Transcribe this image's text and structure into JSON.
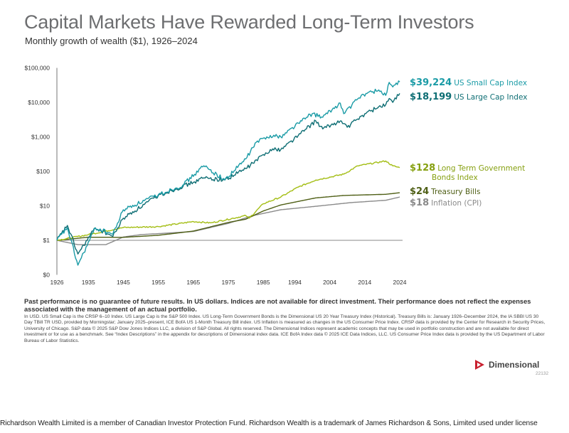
{
  "title": "Capital Markets Have Rewarded Long-Term Investors",
  "subtitle": "Monthly growth of wealth ($1), 1926–2024",
  "chart_data": {
    "type": "line",
    "title": "Capital Markets Have Rewarded Long-Term Investors",
    "subtitle": "Monthly growth of wealth ($1), 1926–2024",
    "y_scale": "log",
    "ylim": [
      0.1,
      100000
    ],
    "xlim": [
      1926,
      2024
    ],
    "y_ticks": [
      {
        "value": 100000,
        "label": "$100,000"
      },
      {
        "value": 10000,
        "label": "$10,000"
      },
      {
        "value": 1000,
        "label": "$1,000"
      },
      {
        "value": 100,
        "label": "$100"
      },
      {
        "value": 10,
        "label": "$10"
      },
      {
        "value": 1,
        "label": "$1"
      },
      {
        "value": 0.1,
        "label": "$0"
      }
    ],
    "x_ticks": [
      "1926",
      "1935",
      "1945",
      "1955",
      "1965",
      "1975",
      "1985",
      "1994",
      "2004",
      "2014",
      "2024"
    ],
    "grid": false,
    "legend": "right (end labels)",
    "series": [
      {
        "name": "US Small Cap Index",
        "end_label": "$39,224",
        "color": "#1a9ba6",
        "x": [
          1926,
          1929,
          1932,
          1937,
          1942,
          1945,
          1955,
          1962,
          1968,
          1974,
          1980,
          1983,
          1987,
          1990,
          1995,
          1999,
          2002,
          2007,
          2008,
          2013,
          2018,
          2020,
          2021,
          2022,
          2024
        ],
        "y": [
          1,
          2.3,
          0.19,
          2.3,
          1.5,
          7.7,
          21,
          40,
          145,
          56,
          230,
          700,
          1100,
          1000,
          2500,
          4700,
          3700,
          9500,
          4700,
          16000,
          23000,
          16000,
          38000,
          28000,
          39224
        ]
      },
      {
        "name": "US Large Cap Index",
        "end_label": "$18,199",
        "color": "#0e6e74",
        "x": [
          1926,
          1929,
          1932,
          1937,
          1942,
          1945,
          1955,
          1965,
          1968,
          1974,
          1980,
          1987,
          1990,
          1995,
          2000,
          2002,
          2007,
          2009,
          2013,
          2018,
          2020,
          2021,
          2022,
          2024
        ],
        "y": [
          1,
          2.7,
          0.4,
          2.3,
          1.3,
          4.4,
          20,
          48,
          65,
          56,
          120,
          430,
          430,
          1100,
          2900,
          1700,
          2900,
          1900,
          4000,
          7500,
          8500,
          13000,
          10000,
          18199
        ]
      },
      {
        "name": "Long Term Government Bonds Index",
        "end_label": "$128",
        "color": "#a3bd12",
        "x": [
          1926,
          1935,
          1945,
          1955,
          1965,
          1970,
          1980,
          1981,
          1985,
          1990,
          1995,
          2000,
          2008,
          2012,
          2020,
          2022,
          2024
        ],
        "y": [
          1,
          1.46,
          2.35,
          2.5,
          3.5,
          3.2,
          5.2,
          4.4,
          11.5,
          18,
          35,
          56,
          83,
          144,
          200,
          144,
          128
        ]
      },
      {
        "name": "Treasury Bills",
        "end_label": "$24",
        "color": "#4f5f16",
        "x": [
          1926,
          1935,
          1945,
          1955,
          1965,
          1975,
          1980,
          1985,
          1990,
          2000,
          2008,
          2020,
          2024
        ],
        "y": [
          1,
          1.23,
          1.22,
          1.4,
          1.85,
          3.3,
          4.1,
          7.1,
          10.6,
          17,
          20,
          21.6,
          24
        ]
      },
      {
        "name": "Inflation (CPI)",
        "end_label": "$18",
        "color": "#8a8a8a",
        "x": [
          1926,
          1932,
          1940,
          1945,
          1950,
          1965,
          1975,
          1982,
          1990,
          2000,
          2010,
          2020,
          2024
        ],
        "y": [
          1,
          0.75,
          0.75,
          1.25,
          1.46,
          1.8,
          3.1,
          5.2,
          7.7,
          9.7,
          12.4,
          14.5,
          18
        ]
      }
    ]
  },
  "labels": {
    "small": {
      "value": "$39,224",
      "name": "US Small Cap Index"
    },
    "large": {
      "value": "$18,199",
      "name": "US Large Cap Index"
    },
    "bonds": {
      "value": "$128",
      "name": "Long Term Government",
      "name2": "Bonds Index"
    },
    "tbills": {
      "value": "$24",
      "name": "Treasury Bills"
    },
    "cpi": {
      "value": "$18",
      "name": "Inflation (CPI)"
    }
  },
  "disclaimer_bold": "Past performance is no guarantee of future results. In US dollars. Indices are not available for direct investment. Their performance does not reflect the expenses associated with the management of an actual portfolio.",
  "disclaimer": "In USD. US Small Cap is the CRSP 6–10 Index. US Large Cap is the S&P 500 Index. US Long-Term Government Bonds is the Dimensional US 20 Year Treasury Index (Historical). Treasury Bills is: January 1926–December 2024, the IA SBBI US 30 Day TBill TR USD, provided by Morningstar; January 2025–present, ICE BofA US 1-Month Treasury Bill index. US Inflation is measured as changes in the US Consumer Price Index. CRSP data is provided by the Center for Research in Security Prices, University of Chicago. S&P data © 2025 S&P Dow Jones Indices LLC, a division of S&P Global. All rights reserved. The Dimensional Indices represent academic concepts that may be used in portfolio construction and are not available for direct investment or for use as a benchmark. See “Index Descriptions” in the appendix for descriptions of Dimensional index data. ICE BofA Index data © 2025 ICE Data Indices, LLC. US Consumer Price Index data is provided by the US Department of Labor Bureau of Labor Statistics.",
  "logo_text": "Dimensional",
  "code": "22132",
  "footer": "Richardson Wealth Limited is a member of Canadian Investor Protection Fund. Richardson Wealth is a trademark of James Richardson & Sons, Limited used under license",
  "colors": {
    "small": "#1a9ba6",
    "large": "#0e6e74",
    "bonds": "#a3bd12",
    "tbills": "#4f5f16",
    "cpi": "#8a8a8a",
    "logo": "#c8202f"
  }
}
